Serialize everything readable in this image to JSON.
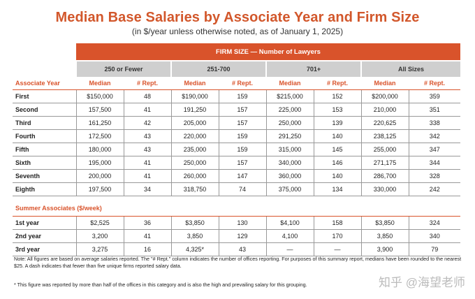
{
  "title": "Median Base Salaries by Associate Year and Firm Size",
  "subtitle": "(in $/year unless otherwise noted, as of January 1, 2025)",
  "firm_size_header": "FIRM SIZE — Number of Lawyers",
  "groups": [
    "250 or Fewer",
    "251-700",
    "701+",
    "All Sizes"
  ],
  "row_header_label": "Associate Year",
  "col_median": "Median",
  "col_rept": "# Rept.",
  "associate_rows": [
    {
      "label": "First",
      "cells": [
        "$150,000",
        "48",
        "$190,000",
        "159",
        "$215,000",
        "152",
        "$200,000",
        "359"
      ]
    },
    {
      "label": "Second",
      "cells": [
        "157,500",
        "41",
        "191,250",
        "157",
        "225,000",
        "153",
        "210,000",
        "351"
      ]
    },
    {
      "label": "Third",
      "cells": [
        "161,250",
        "42",
        "205,000",
        "157",
        "250,000",
        "139",
        "220,625",
        "338"
      ]
    },
    {
      "label": "Fourth",
      "cells": [
        "172,500",
        "43",
        "220,000",
        "159",
        "291,250",
        "140",
        "238,125",
        "342"
      ]
    },
    {
      "label": "Fifth",
      "cells": [
        "180,000",
        "43",
        "235,000",
        "159",
        "315,000",
        "145",
        "255,000",
        "347"
      ]
    },
    {
      "label": "Sixth",
      "cells": [
        "195,000",
        "41",
        "250,000",
        "157",
        "340,000",
        "146",
        "271,175",
        "344"
      ]
    },
    {
      "label": "Seventh",
      "cells": [
        "200,000",
        "41",
        "260,000",
        "147",
        "360,000",
        "140",
        "286,700",
        "328"
      ]
    },
    {
      "label": "Eighth",
      "cells": [
        "197,500",
        "34",
        "318,750",
        "74",
        "375,000",
        "134",
        "330,000",
        "242"
      ]
    }
  ],
  "summer_label": "Summer Associates ($/week)",
  "summer_rows": [
    {
      "label": "1st year",
      "cells": [
        "$2,525",
        "36",
        "$3,850",
        "130",
        "$4,100",
        "158",
        "$3,850",
        "324"
      ]
    },
    {
      "label": "2nd year",
      "cells": [
        "3,200",
        "41",
        "3,850",
        "129",
        "4,100",
        "170",
        "3,850",
        "340"
      ]
    },
    {
      "label": "3rd year",
      "cells": [
        "3,275",
        "16",
        "4,325*",
        "43",
        "—",
        "—",
        "3,900",
        "79"
      ]
    }
  ],
  "note": "Note: All figures are based on average salaries reported. The \"# Rept.\" column indicates the number of offices reporting. For purposes of this summary report, medians have been rounded to the nearest $25. A dash indicates that fewer than five unique firms reported salary data.",
  "footnote": "* This figure was reported by more than half of the offices in this category and is also the high and prevailing salary for this grouping.",
  "watermark": "知乎 @海望老师"
}
